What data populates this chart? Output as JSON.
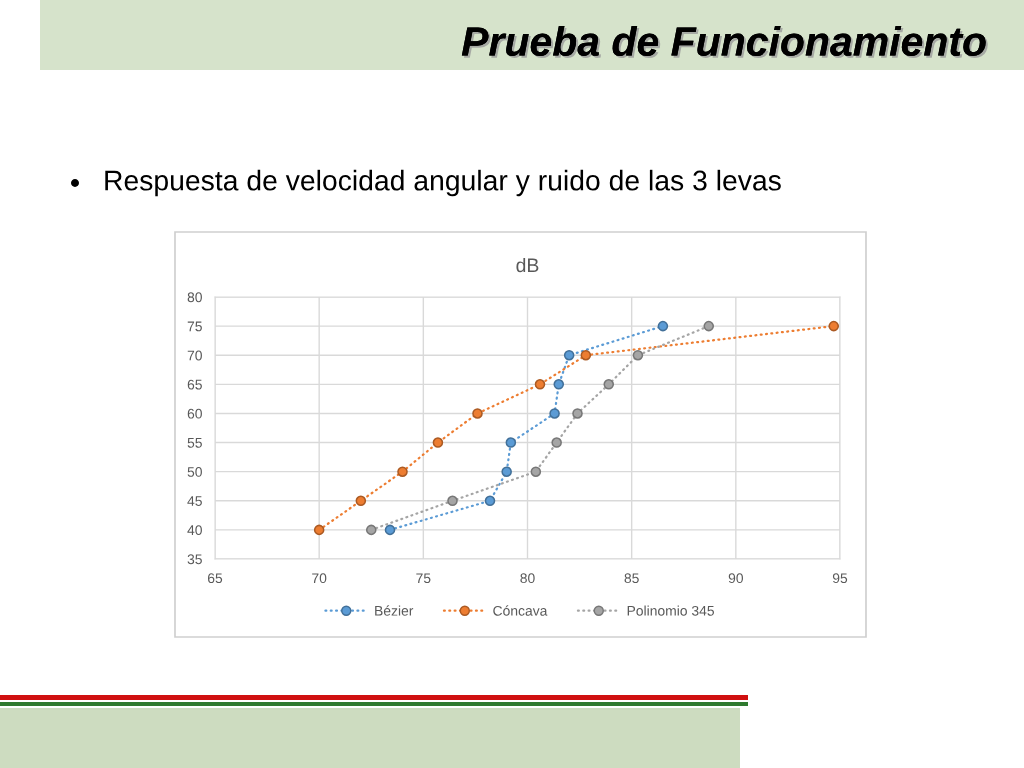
{
  "chart_data": {
    "type": "line",
    "title": "dB",
    "annotations": [
      "Prueba de Funcionamiento",
      "Respuesta de velocidad angular y ruido de las 3 levas"
    ],
    "series": [
      {
        "name": "Bézier",
        "color": "#5b9bd5",
        "x": [
          73.4,
          78.2,
          79.0,
          79.2,
          81.3,
          81.5,
          82.0,
          86.5
        ],
        "values": [
          40,
          45,
          50,
          55,
          60,
          65,
          70,
          75
        ]
      },
      {
        "name": "Cóncava",
        "color": "#ed7d31",
        "x": [
          70.0,
          72.0,
          74.0,
          75.7,
          77.6,
          80.6,
          82.8,
          94.7
        ],
        "values": [
          40,
          45,
          50,
          55,
          60,
          65,
          70,
          75
        ]
      },
      {
        "name": "Polinomio 345",
        "color": "#a5a5a5",
        "x": [
          72.5,
          76.4,
          80.4,
          81.4,
          82.4,
          83.9,
          85.3,
          88.7
        ],
        "values": [
          40,
          45,
          50,
          55,
          60,
          65,
          70,
          75
        ]
      }
    ],
    "xlim": [
      65,
      95
    ],
    "xticks": [
      65,
      70,
      75,
      80,
      85,
      90,
      95
    ],
    "ylim": [
      35,
      80
    ],
    "yticks": [
      35,
      40,
      45,
      50,
      55,
      60,
      65,
      70,
      75,
      80
    ],
    "grid": true,
    "legend": "bottom",
    "marker": "circle",
    "line_style": "dotted"
  }
}
